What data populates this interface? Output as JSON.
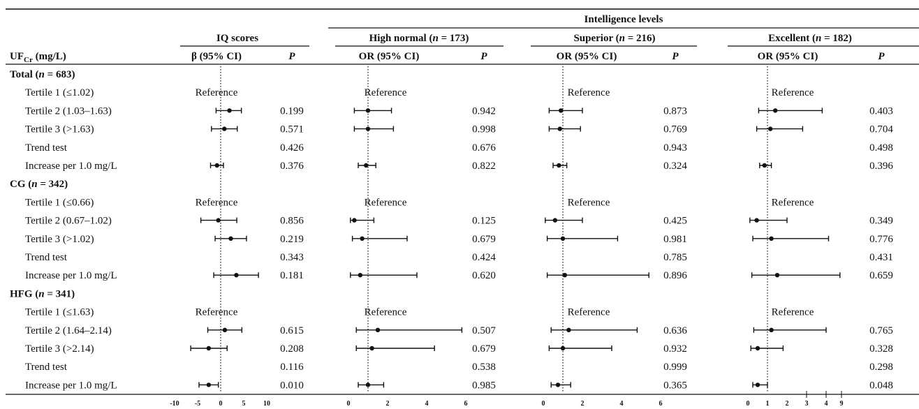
{
  "header": {
    "intelligence_levels": "Intelligence levels",
    "row_header": "UF",
    "row_header_sub": "Cr",
    "row_header_unit": " (mg/L)",
    "panels": [
      {
        "title": "IQ scores",
        "title_italic_n": "",
        "stat_label": "β (95% CI)",
        "p_label": "P"
      },
      {
        "title": "High normal (",
        "n_label": "n",
        "n_value": " = 173)",
        "stat_label": "OR (95% CI)",
        "p_label": "P"
      },
      {
        "title": "Superior (",
        "n_label": "n",
        "n_value": " = 216)",
        "stat_label": "OR (95% CI)",
        "p_label": "P"
      },
      {
        "title": "Excellent (",
        "n_label": "n",
        "n_value": " = 182)",
        "stat_label": "OR (95% CI)",
        "p_label": "P"
      }
    ]
  },
  "reference_label": "Reference",
  "chart_data": {
    "type": "forest",
    "panels": [
      {
        "name": "IQ scores",
        "measure": "β (95% CI)",
        "ref_line": 0,
        "ticks": [
          "-10",
          "-5",
          "0",
          "5",
          "10"
        ]
      },
      {
        "name": "High normal (n = 173)",
        "measure": "OR (95% CI)",
        "ref_line": 1,
        "ticks": [
          "0",
          "2",
          "4",
          "6"
        ]
      },
      {
        "name": "Superior (n = 216)",
        "measure": "OR (95% CI)",
        "ref_line": 1,
        "ticks": [
          "0",
          "2",
          "4",
          "6"
        ]
      },
      {
        "name": "Excellent (n = 182)",
        "measure": "OR (95% CI)",
        "ref_line": 1,
        "scale": "broken",
        "ticks": [
          "0",
          "1",
          "2",
          "3",
          "4",
          "9"
        ]
      }
    ],
    "groups": [
      {
        "label": "Total",
        "n_label": "n",
        "n_value": " = 683",
        "rows": [
          {
            "label": "Tertile 1 (≤1.02)",
            "ref": true,
            "p": [
              "",
              "",
              "",
              ""
            ],
            "est": [
              null,
              null,
              null,
              null
            ]
          },
          {
            "label": "Tertile 2 (1.03–1.63)",
            "p": [
              "0.199",
              "0.942",
              "0.873",
              "0.403"
            ],
            "est": [
              [
                1.9,
                -1.0,
                4.5
              ],
              [
                1.0,
                0.3,
                2.2
              ],
              [
                0.9,
                0.3,
                2.0
              ],
              [
                1.4,
                0.55,
                3.8
              ]
            ]
          },
          {
            "label": "Tertile 3 (>1.63)",
            "p": [
              "0.571",
              "0.998",
              "0.769",
              "0.704"
            ],
            "est": [
              [
                0.8,
                -2.0,
                3.6
              ],
              [
                1.0,
                0.3,
                2.3
              ],
              [
                0.85,
                0.3,
                1.9
              ],
              [
                1.15,
                0.45,
                2.8
              ]
            ]
          },
          {
            "label": "Trend test",
            "p": [
              "0.426",
              "0.676",
              "0.943",
              "0.498"
            ],
            "est": [
              null,
              null,
              null,
              null
            ]
          },
          {
            "label": "Increase per 1.0 mg/L",
            "p": [
              "0.376",
              "0.822",
              "0.324",
              "0.396"
            ],
            "est": [
              [
                -0.8,
                -2.2,
                0.6
              ],
              [
                0.9,
                0.5,
                1.4
              ],
              [
                0.8,
                0.5,
                1.2
              ],
              [
                0.85,
                0.6,
                1.2
              ]
            ]
          }
        ]
      },
      {
        "label": "CG",
        "n_label": "n",
        "n_value": " = 342",
        "rows": [
          {
            "label": "Tertile 1 (≤0.66)",
            "ref": true,
            "p": [
              "",
              "",
              "",
              ""
            ],
            "est": [
              null,
              null,
              null,
              null
            ]
          },
          {
            "label": "Tertile 2 (0.67–1.02)",
            "p": [
              "0.856",
              "0.125",
              "0.425",
              "0.349"
            ],
            "est": [
              [
                -0.5,
                -4.3,
                3.5
              ],
              [
                0.3,
                0.1,
                1.3
              ],
              [
                0.6,
                0.1,
                2.0
              ],
              [
                0.45,
                0.1,
                2.0
              ]
            ]
          },
          {
            "label": "Tertile 3 (>1.02)",
            "p": [
              "0.219",
              "0.679",
              "0.981",
              "0.776"
            ],
            "est": [
              [
                2.2,
                -1.2,
                5.6
              ],
              [
                0.7,
                0.2,
                3.0
              ],
              [
                1.0,
                0.2,
                3.8
              ],
              [
                1.2,
                0.25,
                4.8
              ]
            ]
          },
          {
            "label": "Trend test",
            "p": [
              "0.343",
              "0.424",
              "0.785",
              "0.431"
            ],
            "est": [
              null,
              null,
              null,
              null
            ]
          },
          {
            "label": "Increase per 1.0 mg/L",
            "p": [
              "0.181",
              "0.620",
              "0.896",
              "0.659"
            ],
            "est": [
              [
                3.4,
                -1.5,
                8.2
              ],
              [
                0.6,
                0.1,
                3.5
              ],
              [
                1.1,
                0.2,
                5.4
              ],
              [
                1.5,
                0.2,
                8.5
              ]
            ]
          }
        ]
      },
      {
        "label": "HFG",
        "n_label": "n",
        "n_value": " = 341",
        "rows": [
          {
            "label": "Tertile 1 (≤1.63)",
            "ref": true,
            "p": [
              "",
              "",
              "",
              ""
            ],
            "est": [
              null,
              null,
              null,
              null
            ]
          },
          {
            "label": "Tertile 2 (1.64–2.14)",
            "p": [
              "0.615",
              "0.507",
              "0.636",
              "0.765"
            ],
            "est": [
              [
                0.9,
                -2.8,
                4.6
              ],
              [
                1.5,
                0.4,
                5.8
              ],
              [
                1.3,
                0.4,
                4.8
              ],
              [
                1.2,
                0.3,
                4.0
              ]
            ]
          },
          {
            "label": "Tertile 3 (>2.14)",
            "p": [
              "0.208",
              "0.679",
              "0.932",
              "0.328"
            ],
            "est": [
              [
                -2.6,
                -6.5,
                1.4
              ],
              [
                1.2,
                0.4,
                4.4
              ],
              [
                1.0,
                0.3,
                3.5
              ],
              [
                0.5,
                0.15,
                1.8
              ]
            ]
          },
          {
            "label": "Trend test",
            "p": [
              "0.116",
              "0.538",
              "0.999",
              "0.298"
            ],
            "est": [
              null,
              null,
              null,
              null
            ]
          },
          {
            "label": "Increase per 1.0 mg/L",
            "p": [
              "0.010",
              "0.985",
              "0.365",
              "0.048"
            ],
            "est": [
              [
                -2.6,
                -4.7,
                -0.5
              ],
              [
                1.0,
                0.5,
                1.8
              ],
              [
                0.75,
                0.4,
                1.4
              ],
              [
                0.5,
                0.25,
                1.0
              ]
            ]
          }
        ]
      }
    ]
  }
}
